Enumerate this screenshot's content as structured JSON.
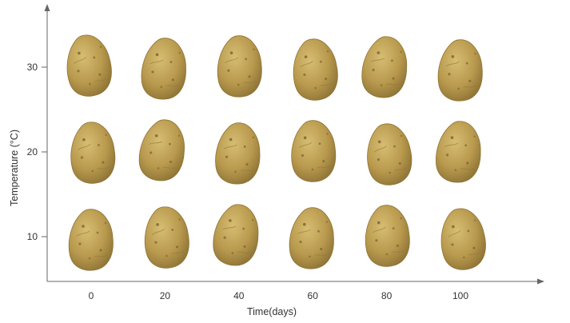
{
  "chart_data": {
    "type": "scatter",
    "title": "",
    "xlabel": "Time(days)",
    "ylabel": "Temperature (°C)",
    "x_ticks": [
      0,
      20,
      40,
      60,
      80,
      100
    ],
    "y_ticks": [
      10,
      20,
      30
    ],
    "marker_icon": "potato-icon",
    "points": [
      {
        "x": 0,
        "y": 30
      },
      {
        "x": 20,
        "y": 30
      },
      {
        "x": 40,
        "y": 30
      },
      {
        "x": 60,
        "y": 30
      },
      {
        "x": 80,
        "y": 30
      },
      {
        "x": 100,
        "y": 30
      },
      {
        "x": 0,
        "y": 20
      },
      {
        "x": 20,
        "y": 20
      },
      {
        "x": 40,
        "y": 20
      },
      {
        "x": 60,
        "y": 20
      },
      {
        "x": 80,
        "y": 20
      },
      {
        "x": 100,
        "y": 20
      },
      {
        "x": 0,
        "y": 10
      },
      {
        "x": 20,
        "y": 10
      },
      {
        "x": 40,
        "y": 10
      },
      {
        "x": 60,
        "y": 10
      },
      {
        "x": 80,
        "y": 10
      },
      {
        "x": 100,
        "y": 10
      }
    ]
  },
  "colors": {
    "axis": "#666666",
    "text": "#333333",
    "potato_base": "#b99a4e",
    "potato_light": "#d6bd72",
    "potato_dark": "#8f7436",
    "potato_spot": "#6e5526"
  }
}
